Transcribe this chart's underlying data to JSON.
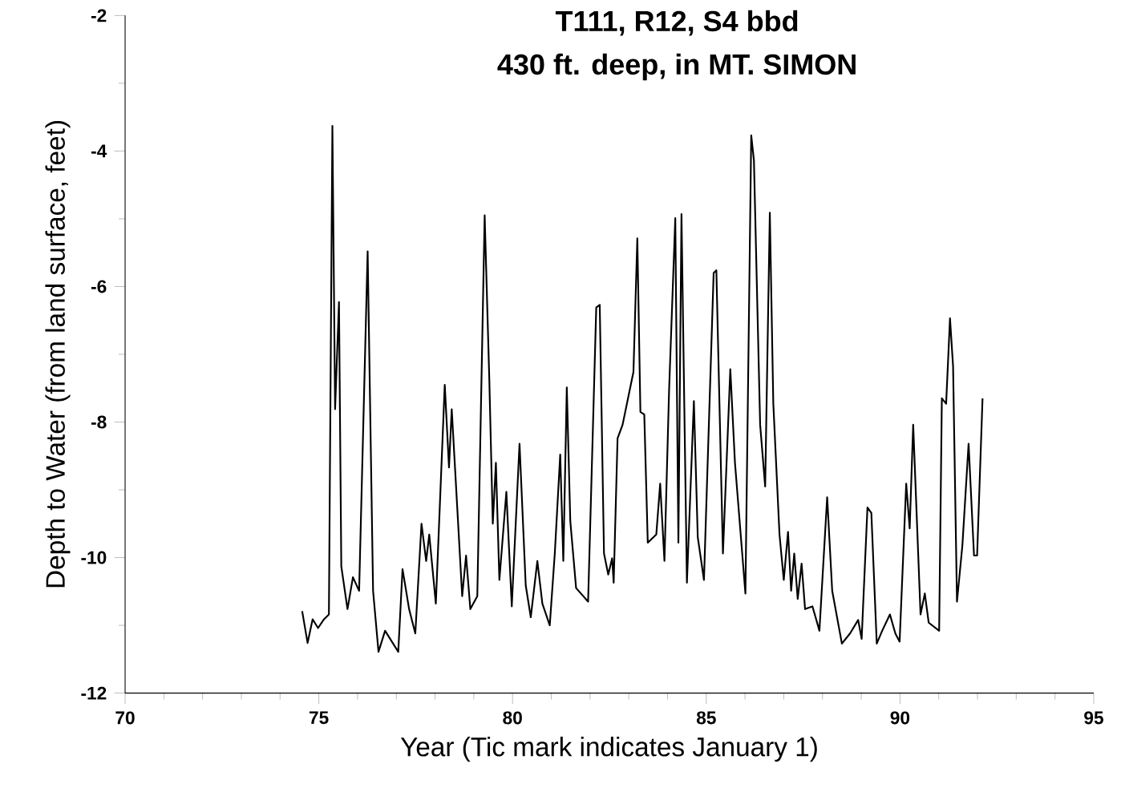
{
  "chart_data": {
    "type": "line",
    "title": "T111, R12, S4 bbd",
    "subtitle": "430 ft. deep, in MT. SIMON",
    "xlabel": "Year (Tic mark indicates January 1)",
    "ylabel": "Depth to Water (from land surface, feet)",
    "xlim": [
      70,
      95
    ],
    "xticks": [
      70,
      75,
      80,
      85,
      90,
      95
    ],
    "ylim": [
      -12,
      -2
    ],
    "yticks": [
      -12,
      -10,
      -8,
      -6,
      -4,
      -2
    ],
    "marker": "none",
    "line_style": "solid",
    "series": [
      {
        "color": "#000000",
        "x": [
          74.57,
          74.71,
          74.84,
          74.98,
          75.12,
          75.26,
          75.35,
          75.42,
          75.52,
          75.58,
          75.74,
          75.88,
          76.04,
          76.26,
          76.4,
          76.54,
          76.71,
          77.05,
          77.16,
          77.33,
          77.49,
          77.65,
          77.77,
          77.85,
          78.02,
          78.25,
          78.36,
          78.43,
          78.53,
          78.7,
          78.8,
          78.91,
          79.09,
          79.28,
          79.4,
          79.49,
          79.57,
          79.66,
          79.84,
          79.98,
          80.18,
          80.34,
          80.47,
          80.64,
          80.77,
          80.96,
          81.09,
          81.23,
          81.31,
          81.4,
          81.49,
          81.64,
          81.95,
          82.16,
          82.25,
          82.36,
          82.47,
          82.57,
          82.61,
          82.71,
          82.84,
          83.12,
          83.22,
          83.3,
          83.4,
          83.49,
          83.71,
          83.81,
          83.92,
          84.04,
          84.2,
          84.28,
          84.36,
          84.5,
          84.68,
          84.78,
          84.94,
          85.19,
          85.26,
          85.43,
          85.62,
          85.74,
          86.01,
          86.16,
          86.23,
          86.39,
          86.52,
          86.64,
          86.73,
          86.89,
          87.0,
          87.11,
          87.19,
          87.27,
          87.36,
          87.46,
          87.55,
          87.74,
          87.92,
          88.12,
          88.25,
          88.5,
          88.71,
          88.92,
          89.01,
          89.16,
          89.26,
          89.4,
          89.54,
          89.74,
          89.88,
          89.99,
          90.16,
          90.25,
          90.34,
          90.53,
          90.64,
          90.74,
          91.01,
          91.08,
          91.19,
          91.29,
          91.37,
          91.47,
          91.61,
          91.77,
          91.91,
          91.99,
          92.13
        ],
        "values": [
          -10.79,
          -11.26,
          -10.91,
          -11.04,
          -10.92,
          -10.84,
          -3.63,
          -7.81,
          -6.23,
          -10.13,
          -10.76,
          -10.29,
          -10.49,
          -5.48,
          -10.49,
          -11.39,
          -11.08,
          -11.39,
          -10.17,
          -10.76,
          -11.12,
          -9.5,
          -10.05,
          -9.66,
          -10.68,
          -7.45,
          -8.67,
          -7.81,
          -8.83,
          -10.57,
          -9.97,
          -10.76,
          -10.57,
          -4.95,
          -7.37,
          -9.5,
          -8.6,
          -10.33,
          -9.03,
          -10.72,
          -8.32,
          -10.41,
          -10.88,
          -10.05,
          -10.68,
          -11.0,
          -9.94,
          -8.48,
          -10.05,
          -7.49,
          -9.46,
          -10.45,
          -10.65,
          -6.31,
          -6.27,
          -9.94,
          -10.25,
          -10.01,
          -10.37,
          -8.24,
          -8.04,
          -7.26,
          -5.29,
          -7.85,
          -7.89,
          -9.78,
          -9.66,
          -8.91,
          -10.05,
          -7.53,
          -4.99,
          -9.78,
          -4.93,
          -10.37,
          -7.69,
          -9.7,
          -10.33,
          -5.8,
          -5.76,
          -9.94,
          -7.22,
          -8.6,
          -10.53,
          -3.77,
          -4.14,
          -8.04,
          -8.95,
          -4.91,
          -7.73,
          -9.66,
          -10.33,
          -9.62,
          -10.49,
          -9.94,
          -10.61,
          -10.09,
          -10.76,
          -10.72,
          -11.08,
          -9.11,
          -10.49,
          -11.27,
          -11.12,
          -10.92,
          -11.2,
          -9.26,
          -9.34,
          -11.27,
          -11.08,
          -10.84,
          -11.12,
          -11.24,
          -8.91,
          -9.57,
          -8.04,
          -10.84,
          -10.53,
          -10.96,
          -11.08,
          -7.65,
          -7.73,
          -6.47,
          -7.18,
          -10.65,
          -9.82,
          -8.32,
          -9.97,
          -9.97,
          -7.65
        ]
      }
    ]
  }
}
